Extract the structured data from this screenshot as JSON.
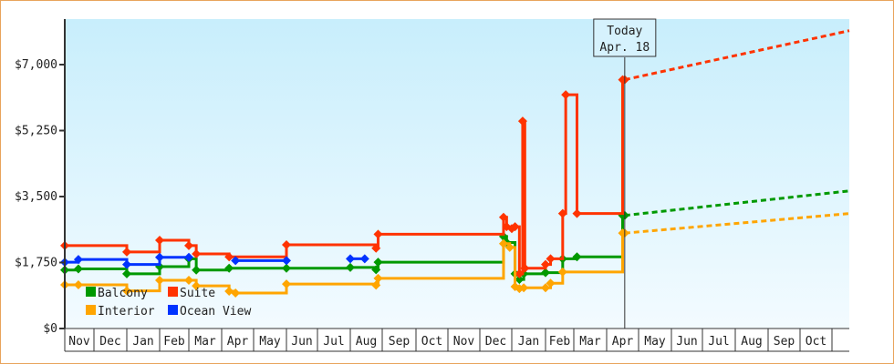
{
  "chart_data": {
    "type": "line",
    "title": "",
    "xlabel": "",
    "ylabel": "",
    "ylim": [
      0,
      7000
    ],
    "y_ticks": [
      "$0",
      "$1,750",
      "$3,500",
      "$5,250",
      "$7,000"
    ],
    "y_tick_values": [
      0,
      1750,
      3500,
      5250,
      7000
    ],
    "x_ticks": [
      "Nov",
      "Dec",
      "Jan",
      "Feb",
      "Mar",
      "Apr",
      "May",
      "Jun",
      "Jul",
      "Aug",
      "Sep",
      "Oct",
      "Nov",
      "Dec",
      "Jan",
      "Feb",
      "Mar",
      "Apr",
      "May",
      "Jun",
      "Jul",
      "Aug",
      "Sep",
      "Oct"
    ],
    "grid": false,
    "legend_placement": "bottom-left",
    "background": "light-blue-gradient",
    "today_marker": {
      "line1": "Today",
      "line2": "Apr. 18",
      "date": "2025-04-18"
    },
    "series": [
      {
        "name": "Balcony",
        "color": "#009900",
        "step": true,
        "segments": [
          [
            [
              "2023-11-01",
              1550
            ],
            [
              "2023-11-15",
              1580
            ],
            [
              "2024-01-01",
              1450
            ],
            [
              "2024-02-01",
              1640
            ],
            [
              "2024-03-01",
              1850
            ],
            [
              "2024-03-08",
              1550
            ],
            [
              "2024-04-08",
              1600
            ],
            [
              "2024-06-01",
              1600
            ],
            [
              "2024-08-01",
              1620
            ],
            [
              "2024-08-26",
              1560
            ],
            [
              "2024-08-28",
              1760
            ],
            [
              "2024-12-24",
              2440
            ],
            [
              "2024-12-27",
              2280
            ],
            [
              "2025-01-04",
              1450
            ],
            [
              "2025-01-08",
              1300
            ],
            [
              "2025-01-12",
              1450
            ],
            [
              "2025-02-01",
              1480
            ],
            [
              "2025-02-18",
              1850
            ],
            [
              "2025-03-04",
              1900
            ],
            [
              "2025-04-16",
              3000
            ],
            [
              "2025-04-18",
              3000
            ]
          ]
        ],
        "forecast": [
          [
            "2025-04-18",
            3000
          ],
          [
            "2025-11-20",
            3650
          ]
        ]
      },
      {
        "name": "Suite",
        "color": "#ff3300",
        "step": true,
        "segments": [
          [
            [
              "2023-11-01",
              2200
            ],
            [
              "2024-01-01",
              2030
            ],
            [
              "2024-02-01",
              2340
            ],
            [
              "2024-03-01",
              2200
            ],
            [
              "2024-03-08",
              1980
            ],
            [
              "2024-04-08",
              1900
            ],
            [
              "2024-06-01",
              2220
            ],
            [
              "2024-08-26",
              2130
            ],
            [
              "2024-08-28",
              2500
            ],
            [
              "2024-12-24",
              2950
            ],
            [
              "2024-12-27",
              2700
            ],
            [
              "2025-01-01",
              2650
            ],
            [
              "2025-01-04",
              2700
            ],
            [
              "2025-01-08",
              1450
            ],
            [
              "2025-01-11",
              5500
            ],
            [
              "2025-01-13",
              1600
            ],
            [
              "2025-02-01",
              1700
            ],
            [
              "2025-02-06",
              1850
            ],
            [
              "2025-02-18",
              3050
            ],
            [
              "2025-02-21",
              6200
            ],
            [
              "2025-03-04",
              3050
            ],
            [
              "2025-04-16",
              6600
            ],
            [
              "2025-04-18",
              6600
            ]
          ]
        ],
        "forecast": [
          [
            "2025-04-18",
            6600
          ],
          [
            "2025-11-20",
            7900
          ]
        ]
      },
      {
        "name": "Interior",
        "color": "#ffa500",
        "step": true,
        "segments": [
          [
            [
              "2023-11-01",
              1160
            ],
            [
              "2023-11-15",
              1160
            ],
            [
              "2024-01-01",
              1000
            ],
            [
              "2024-02-01",
              1280
            ],
            [
              "2024-03-01",
              1280
            ],
            [
              "2024-03-08",
              1130
            ],
            [
              "2024-04-08",
              990
            ],
            [
              "2024-04-14",
              940
            ],
            [
              "2024-06-01",
              1180
            ],
            [
              "2024-08-26",
              1150
            ],
            [
              "2024-08-28",
              1330
            ],
            [
              "2024-12-24",
              2250
            ],
            [
              "2024-12-30",
              2150
            ],
            [
              "2025-01-04",
              1110
            ],
            [
              "2025-01-08",
              1060
            ],
            [
              "2025-01-12",
              1080
            ],
            [
              "2025-02-01",
              1080
            ],
            [
              "2025-02-06",
              1200
            ],
            [
              "2025-02-18",
              1500
            ],
            [
              "2025-04-16",
              2530
            ],
            [
              "2025-04-18",
              2530
            ]
          ]
        ],
        "forecast": [
          [
            "2025-04-18",
            2530
          ],
          [
            "2025-11-20",
            3050
          ]
        ]
      },
      {
        "name": "Ocean View",
        "color": "#0033ff",
        "step": true,
        "segments": [
          [
            [
              "2023-11-01",
              1760
            ],
            [
              "2023-11-15",
              1830
            ],
            [
              "2024-01-01",
              1700
            ],
            [
              "2024-02-01",
              1890
            ],
            [
              "2024-03-01",
              1890
            ]
          ],
          [
            [
              "2024-04-14",
              1800
            ],
            [
              "2024-06-01",
              1800
            ]
          ],
          [
            [
              "2024-08-01",
              1850
            ],
            [
              "2024-08-15",
              1850
            ]
          ]
        ],
        "forecast": []
      }
    ]
  }
}
